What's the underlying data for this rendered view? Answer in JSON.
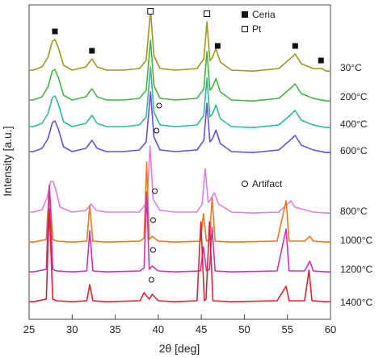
{
  "chart_data": {
    "type": "line",
    "xlabel": "2θ [deg]",
    "ylabel": "Intensity [a.u.]",
    "xlim": [
      25,
      60
    ],
    "xticks": [
      25,
      30,
      35,
      40,
      45,
      50,
      55,
      60
    ],
    "grid": false,
    "legend": [
      {
        "marker": "filled-square",
        "label": "Ceria"
      },
      {
        "marker": "open-square",
        "label": "Pt"
      },
      {
        "marker": "open-circle",
        "label": "Artifact"
      }
    ],
    "series": [
      {
        "name": "30°C",
        "color": "#9a9a1f",
        "x": [
          25.5,
          26.5,
          27.2,
          27.7,
          28.0,
          28.4,
          29.0,
          30,
          31.6,
          32.3,
          32.9,
          34,
          36,
          37.8,
          38.6,
          39.1,
          39.5,
          40.2,
          42,
          44.5,
          45.3,
          45.65,
          46.0,
          46.3,
          46.7,
          47.2,
          48.5,
          51,
          54,
          55.3,
          55.9,
          56.6,
          58,
          59,
          59.5
        ],
        "y": [
          0.05,
          0.15,
          0.45,
          0.95,
          1.0,
          0.75,
          0.2,
          0.05,
          0.15,
          0.4,
          0.15,
          0.05,
          0.05,
          0.1,
          0.35,
          1.9,
          0.5,
          0.1,
          0.05,
          0.1,
          0.4,
          1.55,
          0.35,
          0.45,
          0.72,
          0.3,
          0.05,
          0.02,
          0.1,
          0.4,
          0.55,
          0.25,
          0.1,
          0.1,
          0.02
        ]
      },
      {
        "name": "200°C",
        "color": "#44b444",
        "x": [
          25.5,
          26.5,
          27.2,
          27.7,
          28.0,
          28.4,
          29.0,
          30,
          31.6,
          32.3,
          32.9,
          34,
          36,
          37.8,
          38.6,
          39.1,
          39.5,
          40.2,
          42,
          44.5,
          45.3,
          45.65,
          46.0,
          46.3,
          46.7,
          47.2,
          48.5,
          51,
          54,
          55.3,
          55.9,
          56.6,
          58,
          59.5
        ],
        "y": [
          0.05,
          0.15,
          0.45,
          0.95,
          1.0,
          0.75,
          0.2,
          0.05,
          0.15,
          0.4,
          0.15,
          0.05,
          0.05,
          0.1,
          0.35,
          1.9,
          0.5,
          0.1,
          0.05,
          0.1,
          0.4,
          1.55,
          0.35,
          0.45,
          0.72,
          0.3,
          0.05,
          0.02,
          0.1,
          0.4,
          0.55,
          0.25,
          0.1,
          0.02
        ]
      },
      {
        "name": "400°C",
        "color": "#2fb89a",
        "x": [
          25.5,
          26.5,
          27.2,
          27.7,
          28.0,
          28.4,
          29.0,
          30,
          31.6,
          32.3,
          32.9,
          34,
          36,
          37.8,
          38.6,
          39.1,
          39.5,
          40.2,
          42,
          44.5,
          45.3,
          45.65,
          46.0,
          46.3,
          46.7,
          47.2,
          48.5,
          51,
          54,
          55.3,
          55.9,
          56.6,
          58,
          59.5
        ],
        "y": [
          0.05,
          0.15,
          0.45,
          0.95,
          1.0,
          0.75,
          0.2,
          0.05,
          0.15,
          0.4,
          0.15,
          0.05,
          0.05,
          0.1,
          0.35,
          1.9,
          0.5,
          0.1,
          0.05,
          0.1,
          0.4,
          1.55,
          0.35,
          0.45,
          0.72,
          0.3,
          0.05,
          0.02,
          0.1,
          0.4,
          0.55,
          0.25,
          0.1,
          0.02
        ]
      },
      {
        "name": "600°C",
        "color": "#6a4fd6",
        "x": [
          25.5,
          26.5,
          27.2,
          27.7,
          28.0,
          28.4,
          29.0,
          30,
          31.6,
          32.3,
          32.9,
          34,
          36,
          37.8,
          38.6,
          39.1,
          39.5,
          40.2,
          42,
          44.5,
          45.3,
          45.65,
          46.0,
          46.3,
          46.7,
          47.2,
          48.5,
          51,
          54,
          55.3,
          55.9,
          56.6,
          58,
          59.5
        ],
        "y": [
          0.05,
          0.15,
          0.45,
          0.95,
          1.0,
          0.75,
          0.2,
          0.05,
          0.15,
          0.4,
          0.15,
          0.05,
          0.05,
          0.1,
          0.35,
          1.9,
          0.5,
          0.1,
          0.05,
          0.1,
          0.4,
          1.55,
          0.35,
          0.45,
          0.72,
          0.3,
          0.05,
          0.02,
          0.1,
          0.4,
          0.55,
          0.25,
          0.1,
          0.02
        ]
      },
      {
        "name": "800°C",
        "color": "#e07ee0",
        "x": [
          25.5,
          26.5,
          27.1,
          27.5,
          27.8,
          28.1,
          28.6,
          30,
          31.6,
          32.2,
          32.8,
          34,
          36,
          37.8,
          38.7,
          39.05,
          39.4,
          40.2,
          42,
          44.5,
          45.1,
          45.45,
          45.8,
          46.1,
          46.5,
          47.0,
          48.5,
          51,
          54,
          55.0,
          55.4,
          55.9,
          58,
          59.5
        ],
        "y": [
          0.05,
          0.12,
          0.5,
          1.0,
          1.0,
          0.75,
          0.2,
          0.05,
          0.1,
          0.3,
          0.1,
          0.05,
          0.05,
          0.05,
          0.35,
          2.1,
          0.45,
          0.1,
          0.05,
          0.05,
          0.3,
          1.4,
          0.35,
          0.45,
          0.65,
          0.3,
          0.05,
          0.02,
          0.05,
          0.3,
          0.4,
          0.2,
          0.05,
          0.02
        ]
      },
      {
        "name": "1000°C",
        "color": "#ee7722",
        "x": [
          25.5,
          27.0,
          27.35,
          27.75,
          28.2,
          30,
          31.7,
          32.05,
          32.4,
          34,
          37.9,
          38.35,
          38.65,
          38.95,
          39.3,
          40.0,
          42,
          44.9,
          45.25,
          45.6,
          45.95,
          46.25,
          46.6,
          48.5,
          53.8,
          54.85,
          55.2,
          57,
          57.6,
          58.0,
          59.5
        ],
        "y": [
          0.02,
          0.1,
          1.8,
          0.1,
          0.05,
          0.02,
          0.05,
          1.15,
          0.05,
          0.02,
          0.05,
          0.15,
          2.5,
          0.1,
          0.2,
          0.05,
          0.02,
          0.05,
          0.9,
          0.05,
          0.1,
          1.4,
          0.05,
          0.02,
          0.05,
          1.3,
          0.05,
          0.05,
          0.2,
          0.05,
          0.02
        ]
      },
      {
        "name": "1200°C",
        "color": "#cc33aa",
        "x": [
          25.5,
          27.0,
          27.35,
          27.75,
          28.2,
          30,
          31.7,
          32.05,
          32.4,
          34,
          37.9,
          38.35,
          38.65,
          38.95,
          39.3,
          40.0,
          42,
          44.9,
          45.25,
          45.6,
          45.95,
          46.25,
          46.6,
          48.5,
          53.8,
          54.85,
          55.2,
          57,
          57.6,
          58.0,
          59.5
        ],
        "y": [
          0.02,
          0.1,
          2.7,
          0.1,
          0.05,
          0.02,
          0.05,
          1.3,
          0.05,
          0.02,
          0.05,
          0.15,
          2.5,
          0.1,
          0.2,
          0.05,
          0.02,
          0.05,
          0.8,
          0.05,
          0.1,
          1.4,
          0.05,
          0.02,
          0.05,
          1.35,
          0.05,
          0.05,
          0.35,
          0.05,
          0.02
        ]
      },
      {
        "name": "1400°C",
        "color": "#dd2233",
        "x": [
          25.5,
          27.0,
          27.35,
          27.75,
          28.2,
          30,
          31.7,
          32.05,
          32.4,
          34,
          37.9,
          38.35,
          38.65,
          38.95,
          39.3,
          40.0,
          42,
          44.5,
          44.95,
          45.35,
          45.55,
          45.95,
          46.35,
          48.5,
          53.8,
          54.85,
          55.2,
          57,
          57.5,
          57.85,
          59.5
        ],
        "y": [
          0.02,
          0.1,
          2.9,
          0.1,
          0.05,
          0.02,
          0.05,
          0.55,
          0.05,
          0.02,
          0.05,
          0.3,
          0.2,
          0.1,
          0.25,
          0.05,
          0.02,
          0.05,
          2.5,
          0.05,
          0.1,
          2.5,
          0.05,
          0.02,
          0.05,
          0.5,
          0.05,
          0.05,
          1.0,
          0.05,
          0.02
        ]
      }
    ],
    "markers": [
      {
        "type": "filled-square",
        "x": 28.0,
        "series": "30°C"
      },
      {
        "type": "filled-square",
        "x": 32.3,
        "series": "30°C"
      },
      {
        "type": "open-square",
        "x": 39.1,
        "series": "30°C"
      },
      {
        "type": "open-square",
        "x": 45.65,
        "series": "30°C"
      },
      {
        "type": "filled-square",
        "x": 46.9,
        "series": "30°C"
      },
      {
        "type": "filled-square",
        "x": 55.9,
        "series": "30°C"
      },
      {
        "type": "filled-square",
        "x": 58.9,
        "series": "30°C"
      },
      {
        "type": "open-circle",
        "x": 40.1,
        "series": "400°C"
      },
      {
        "type": "open-circle",
        "x": 39.8,
        "series": "600°C"
      },
      {
        "type": "open-circle",
        "x": 39.6,
        "series": "800°C"
      },
      {
        "type": "open-circle",
        "x": 39.4,
        "series": "1000°C"
      },
      {
        "type": "open-circle",
        "x": 39.4,
        "series": "1200°C"
      },
      {
        "type": "open-circle",
        "x": 39.2,
        "series": "1400°C"
      }
    ]
  }
}
